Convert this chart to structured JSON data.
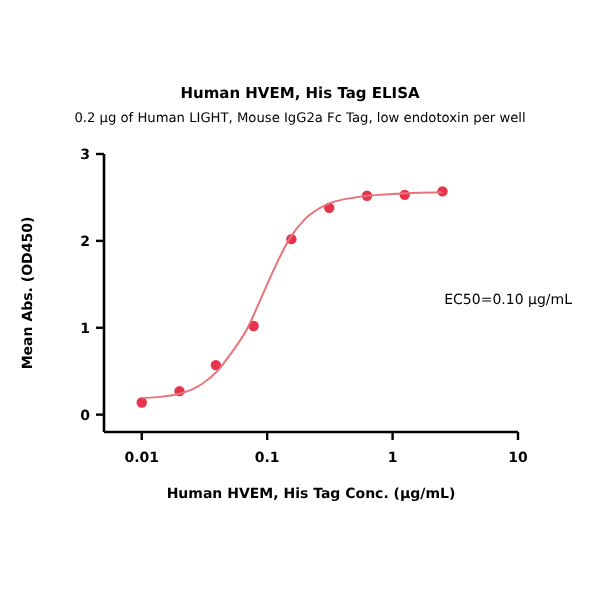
{
  "chart_data": {
    "type": "scatter",
    "title": "Human HVEM, His Tag ELISA",
    "subtitle": "0.2 μg of Human LIGHT, Mouse IgG2a Fc Tag, low endotoxin per well",
    "xlabel": "Human HVEM, His Tag Conc. (μg/mL)",
    "ylabel": "Mean Abs. (OD450)",
    "log": "x",
    "xlim": [
      0.005,
      10
    ],
    "xticks": [
      0.01,
      0.1,
      1,
      10
    ],
    "ylim": [
      -0.2,
      3
    ],
    "yticks": [
      0,
      1,
      2,
      3
    ],
    "grid": false,
    "annotations": [
      "EC50=0.10 μg/mL"
    ],
    "series": [
      {
        "marker": "circle",
        "color": "#e8344a",
        "x": [
          0.01,
          0.02,
          0.039,
          0.078,
          0.156,
          0.3125,
          0.625,
          1.25,
          2.5
        ],
        "values": [
          0.14,
          0.27,
          0.57,
          1.02,
          2.02,
          2.38,
          2.52,
          2.53,
          2.57
        ]
      },
      {
        "type": "line",
        "marker": "none",
        "color": "#e8737a",
        "line_style": "solid",
        "x": [
          0.01,
          0.015,
          0.02,
          0.03,
          0.04,
          0.05,
          0.07,
          0.09,
          0.1,
          0.12,
          0.15,
          0.2,
          0.3,
          0.5,
          1,
          2.5
        ],
        "values": [
          0.19,
          0.21,
          0.24,
          0.35,
          0.5,
          0.68,
          1.0,
          1.35,
          1.5,
          1.75,
          2.02,
          2.25,
          2.42,
          2.5,
          2.54,
          2.56
        ]
      }
    ]
  }
}
